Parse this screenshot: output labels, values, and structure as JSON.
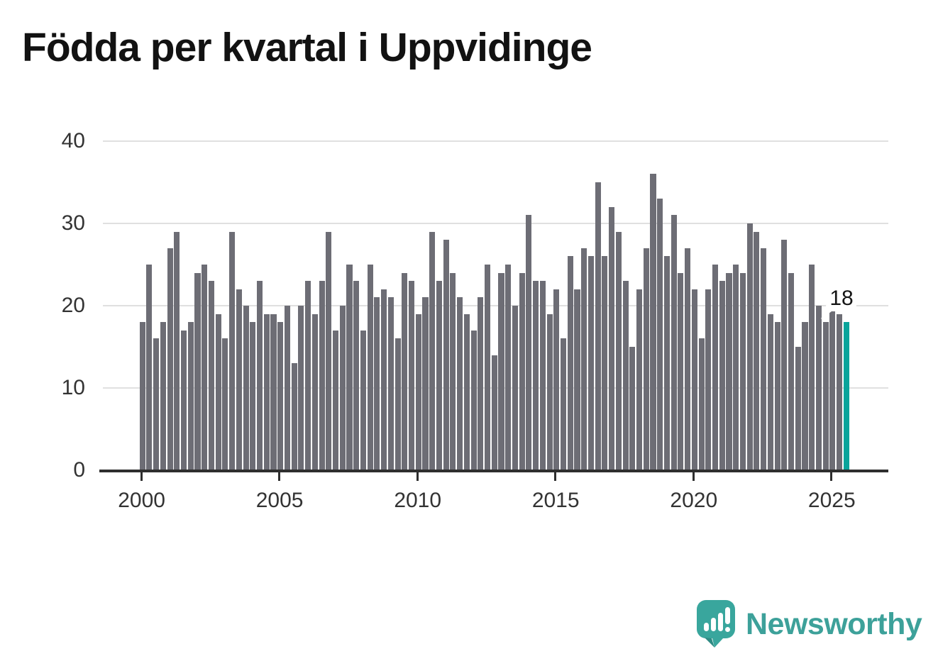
{
  "title": "Födda per kvartal i Uppvidinge",
  "chart_data": {
    "type": "bar",
    "title": "Födda per kvartal i Uppvidinge",
    "x_start_quarter": "2000-Q1",
    "x_end_quarter": "2025-Q3",
    "values": [
      18,
      25,
      16,
      18,
      27,
      29,
      17,
      18,
      24,
      25,
      23,
      19,
      16,
      29,
      22,
      20,
      18,
      23,
      19,
      19,
      18,
      20,
      13,
      20,
      23,
      19,
      23,
      29,
      17,
      20,
      25,
      23,
      17,
      25,
      21,
      22,
      21,
      16,
      24,
      23,
      19,
      21,
      29,
      23,
      28,
      24,
      21,
      19,
      17,
      21,
      25,
      14,
      24,
      25,
      20,
      24,
      31,
      23,
      23,
      19,
      22,
      16,
      26,
      22,
      27,
      26,
      35,
      26,
      32,
      29,
      23,
      15,
      22,
      27,
      36,
      33,
      26,
      31,
      24,
      27,
      22,
      16,
      22,
      25,
      23,
      24,
      25,
      24,
      30,
      29,
      27,
      19,
      18,
      28,
      24,
      15,
      18,
      25,
      20,
      18,
      20,
      19,
      18
    ],
    "xlabel": "",
    "ylabel": "",
    "ylim": [
      0,
      40
    ],
    "yticks": [
      0,
      10,
      20,
      30,
      40
    ],
    "y_tick_labels": [
      "0",
      "10",
      "20",
      "30",
      "40"
    ],
    "x_tick_labels": [
      "2000",
      "2005",
      "2010",
      "2015",
      "2020",
      "2025"
    ],
    "x_tick_quarter_indices": [
      0,
      20,
      40,
      60,
      80,
      100
    ],
    "grid": true,
    "legend": "none",
    "highlight_last_bar": {
      "quarter": "2025-Q3",
      "value": 18,
      "annotation_label": "18"
    }
  },
  "annotation": {
    "label": "18"
  },
  "branding": {
    "name": "Newsworthy",
    "logo_icon": "speech-bubble-bar-chart-exclamation"
  },
  "colors": {
    "bar": "#6d6d75",
    "highlight": "#0aa49b",
    "grid": "#e0e0e0",
    "axis": "#2e2e2e",
    "tick_text": "#333333",
    "title_text": "#121212",
    "brand_teal": "#3da19a",
    "brand_teal_dark": "#2e8b84"
  }
}
